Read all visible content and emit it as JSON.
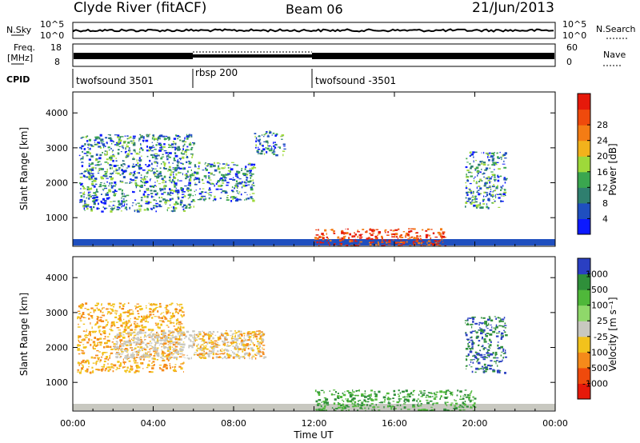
{
  "header": {
    "station": "Clyde River (fitACF)",
    "beam": "Beam 06",
    "date": "21/Jun/2013"
  },
  "strips": {
    "nsky_label": "N.Sky",
    "nsky_ticks": [
      "10^5",
      "10^0"
    ],
    "nsearch_label": "N.Search",
    "nsearch_ticks": [
      "10^5",
      "10^0"
    ],
    "freq_label_1": "Freq.",
    "freq_label_2": "[MHz]",
    "freq_ticks": [
      "18",
      "8"
    ],
    "nave_label": "Nave",
    "nave_ticks": [
      "60",
      "0"
    ],
    "cpid_label": "CPID",
    "cpid_segments": [
      {
        "label": "twofsound 3501",
        "start_h": 0,
        "end_h": 6
      },
      {
        "label": "rbsp 200",
        "start_h": 6,
        "end_h": 12
      },
      {
        "label": "twofsound -3501",
        "start_h": 12,
        "end_h": 24
      }
    ]
  },
  "chart_data": [
    {
      "type": "heatmap",
      "name": "power",
      "ylabel": "Slant Range [km]",
      "xlim": [
        0,
        24
      ],
      "ylim": [
        180,
        4600
      ],
      "y_ticks": [
        1000,
        2000,
        3000,
        4000
      ],
      "colorbar": {
        "label": "Power [dB]",
        "ticks": [
          "4",
          "8",
          "12",
          "16",
          "20",
          "24",
          "28"
        ],
        "colors": [
          "#0c19ff",
          "#1f4fbf",
          "#2f7f6f",
          "#3aa64f",
          "#9ed93a",
          "#f2b21c",
          "#f47c14",
          "#ef4a0c",
          "#e6190a"
        ]
      },
      "regions": [
        {
          "t0": 0.3,
          "t1": 6.0,
          "r0": 1200,
          "r1": 3400,
          "level": "8-16 dB"
        },
        {
          "t0": 6.0,
          "t1": 9.0,
          "r0": 1500,
          "r1": 2600,
          "level": "4-12 dB"
        },
        {
          "t0": 9.0,
          "t1": 10.5,
          "r0": 2800,
          "r1": 3500,
          "level": "12-20 dB"
        },
        {
          "t0": 12.0,
          "t1": 18.5,
          "r0": 200,
          "r1": 700,
          "level": "20-28 dB"
        },
        {
          "t0": 19.5,
          "t1": 21.5,
          "r0": 1300,
          "r1": 2900,
          "level": "8-16 dB"
        }
      ]
    },
    {
      "type": "heatmap",
      "name": "velocity",
      "xlabel": "Time UT",
      "ylabel": "Slant Range [km]",
      "xlim": [
        0,
        24
      ],
      "ylim": [
        180,
        4600
      ],
      "x_ticks": [
        "00:00",
        "04:00",
        "08:00",
        "12:00",
        "16:00",
        "20:00",
        "00:00"
      ],
      "y_ticks": [
        1000,
        2000,
        3000,
        4000
      ],
      "colorbar": {
        "label": "Velocity [m s⁻¹]",
        "ticks": [
          "1000",
          "500",
          "100",
          "25",
          "-25",
          "-100",
          "-500",
          "-1000"
        ],
        "colors": [
          "#2a3fc2",
          "#2f8f3a",
          "#4fb83a",
          "#8fd86a",
          "#c8c8c0",
          "#f2c21c",
          "#f58a1a",
          "#ef4a0c",
          "#e6190a"
        ]
      },
      "regions": [
        {
          "t0": 0.2,
          "t1": 5.5,
          "r0": 1300,
          "r1": 3300,
          "level": "-100 to -500 m/s"
        },
        {
          "t0": 2.0,
          "t1": 9.5,
          "r0": 1700,
          "r1": 2500,
          "level": "-25 to 25 m/s"
        },
        {
          "t0": 6.0,
          "t1": 9.5,
          "r0": 1700,
          "r1": 2500,
          "level": "-100 to -500 m/s"
        },
        {
          "t0": 12.0,
          "t1": 20.0,
          "r0": 200,
          "r1": 800,
          "level": "100 to 500 m/s"
        },
        {
          "t0": 19.5,
          "t1": 21.5,
          "r0": 1300,
          "r1": 2900,
          "level": "500 to 1000 m/s"
        }
      ]
    }
  ]
}
